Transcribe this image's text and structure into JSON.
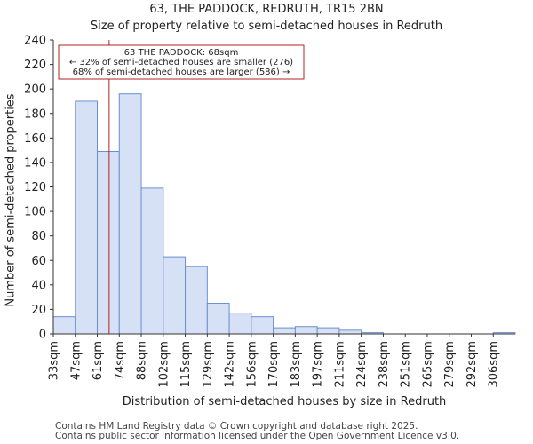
{
  "chart_data": {
    "type": "bar",
    "title": "63, THE PADDOCK, REDRUTH, TR15 2BN",
    "subtitle": "Size of property relative to semi-detached houses in Redruth",
    "xlabel": "Distribution of semi-detached houses by size in Redruth",
    "ylabel": "Number of semi-detached properties",
    "ylim": [
      0,
      240
    ],
    "yticks": [
      0,
      20,
      40,
      60,
      80,
      100,
      120,
      140,
      160,
      180,
      200,
      220,
      240
    ],
    "categories": [
      "33sqm",
      "47sqm",
      "61sqm",
      "74sqm",
      "88sqm",
      "102sqm",
      "115sqm",
      "129sqm",
      "142sqm",
      "156sqm",
      "170sqm",
      "183sqm",
      "197sqm",
      "211sqm",
      "224sqm",
      "238sqm",
      "251sqm",
      "265sqm",
      "279sqm",
      "292sqm",
      "306sqm"
    ],
    "values": [
      14,
      190,
      149,
      196,
      119,
      63,
      55,
      25,
      17,
      14,
      5,
      6,
      5,
      3,
      1,
      0,
      0,
      0,
      0,
      0,
      1
    ],
    "marker_value": 68,
    "annotation": {
      "line1": "63 THE PADDOCK: 68sqm",
      "line2": "← 32% of semi-detached houses are smaller (276)",
      "line3": "68% of semi-detached houses are larger (586) →"
    },
    "colors": {
      "bar_fill": "#d7e1f5",
      "bar_edge": "#6a8fcf",
      "marker": "#b22222"
    }
  },
  "footer": {
    "line1": "Contains HM Land Registry data © Crown copyright and database right 2025.",
    "line2": "Contains public sector information licensed under the Open Government Licence v3.0."
  }
}
